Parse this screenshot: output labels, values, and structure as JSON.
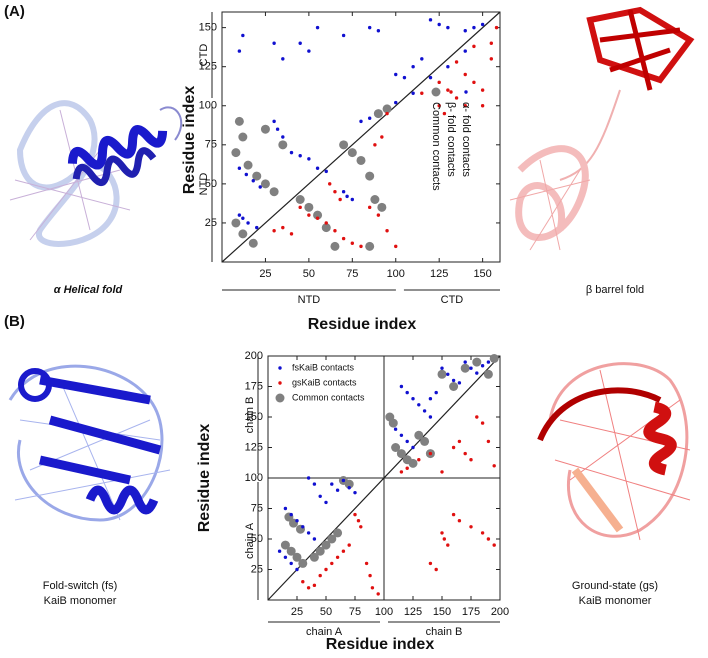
{
  "figure": {
    "panel_labels": [
      "(A)",
      "(B)"
    ],
    "captions": {
      "a_left": "α Helical fold",
      "a_right": "β barrel fold",
      "b_left": [
        "Fold-switch (fs)",
        "KaiB monomer"
      ],
      "b_right": [
        "Ground-state (gs)",
        "KaiB monomer"
      ]
    }
  },
  "chart_data": [
    {
      "type": "scatter",
      "x_label": "Residue index",
      "y_label": "Residue index",
      "xlim": [
        0,
        160
      ],
      "ylim": [
        0,
        160
      ],
      "xticks": [
        25,
        50,
        75,
        100,
        125,
        150
      ],
      "yticks": [
        25,
        50,
        75,
        100,
        125,
        150
      ],
      "x_domains": [
        "NTD",
        "CTD"
      ],
      "y_domains": [
        "NTD",
        "CTD"
      ],
      "legend": "rotated-inside",
      "series": [
        {
          "name": "α- fold contacts",
          "color": "#1010d0",
          "x": [
            10,
            12,
            15,
            20,
            30,
            32,
            35,
            10,
            14,
            18,
            22,
            40,
            45,
            50,
            55,
            60,
            70,
            72,
            75,
            80,
            85,
            30,
            35,
            45,
            50,
            55,
            70,
            85,
            90,
            100,
            105,
            110,
            115,
            120,
            125,
            130,
            140,
            145,
            150,
            12,
            10,
            100,
            110,
            120,
            130,
            140
          ],
          "values": [
            30,
            28,
            25,
            22,
            90,
            85,
            80,
            60,
            56,
            52,
            48,
            70,
            68,
            66,
            60,
            58,
            45,
            42,
            40,
            90,
            92,
            140,
            130,
            140,
            135,
            150,
            145,
            150,
            148,
            120,
            118,
            125,
            130,
            155,
            152,
            150,
            148,
            150,
            152,
            145,
            135,
            102,
            108,
            118,
            125,
            135
          ]
        },
        {
          "name": "β- fold contacts",
          "color": "#e01010",
          "x": [
            30,
            35,
            40,
            45,
            50,
            55,
            60,
            65,
            70,
            75,
            80,
            62,
            65,
            68,
            85,
            90,
            95,
            100,
            88,
            92,
            95,
            125,
            128,
            130,
            135,
            140,
            145,
            150,
            155,
            158,
            150,
            140,
            155,
            115,
            125,
            135,
            145
          ],
          "values": [
            20,
            22,
            18,
            35,
            30,
            28,
            25,
            20,
            15,
            12,
            10,
            50,
            45,
            40,
            35,
            30,
            20,
            10,
            75,
            80,
            95,
            100,
            95,
            110,
            105,
            120,
            115,
            110,
            140,
            150,
            100,
            100,
            130,
            108,
            115,
            128,
            138
          ]
        },
        {
          "name": "Common contacts",
          "color": "#808080",
          "x": [
            10,
            12,
            8,
            15,
            20,
            25,
            30,
            8,
            12,
            18,
            25,
            35,
            45,
            50,
            55,
            60,
            70,
            75,
            80,
            85,
            90,
            95,
            65,
            85,
            88,
            92
          ],
          "values": [
            90,
            80,
            70,
            62,
            55,
            50,
            45,
            25,
            18,
            12,
            85,
            75,
            40,
            35,
            30,
            22,
            75,
            70,
            65,
            55,
            95,
            98,
            10,
            10,
            40,
            35
          ]
        }
      ]
    },
    {
      "type": "scatter",
      "x_label": "Residue index",
      "y_label": "Residue index",
      "xlim": [
        0,
        200
      ],
      "ylim": [
        0,
        200
      ],
      "xticks": [
        25,
        50,
        75,
        100,
        125,
        150,
        175,
        200
      ],
      "yticks": [
        25,
        50,
        75,
        100,
        125,
        150,
        175,
        200
      ],
      "x_domains": [
        "chain A",
        "chain B"
      ],
      "y_domains": [
        "chain A",
        "chain B"
      ],
      "legend": "upper left",
      "series": [
        {
          "name": "fsKaiB contacts",
          "color": "#1010d0",
          "x": [
            10,
            15,
            20,
            25,
            15,
            20,
            25,
            30,
            35,
            40,
            45,
            50,
            55,
            60,
            65,
            70,
            75,
            35,
            40,
            110,
            115,
            120,
            125,
            115,
            120,
            125,
            130,
            135,
            140,
            150,
            155,
            160,
            165,
            170,
            175,
            180,
            185,
            190,
            145,
            140
          ],
          "values": [
            40,
            35,
            30,
            25,
            75,
            70,
            65,
            60,
            55,
            50,
            85,
            80,
            95,
            90,
            98,
            92,
            88,
            100,
            95,
            140,
            135,
            130,
            125,
            175,
            170,
            165,
            160,
            155,
            150,
            190,
            185,
            180,
            178,
            195,
            190,
            186,
            192,
            195,
            170,
            165
          ]
        },
        {
          "name": "gsKaiB contacts",
          "color": "#e01010",
          "x": [
            30,
            35,
            40,
            45,
            50,
            55,
            60,
            65,
            70,
            75,
            78,
            80,
            85,
            88,
            90,
            95,
            115,
            120,
            130,
            140,
            150,
            160,
            165,
            170,
            175,
            180,
            185,
            190,
            195,
            150,
            152,
            155,
            160,
            165,
            175,
            185,
            190,
            195,
            140,
            145
          ],
          "values": [
            15,
            10,
            12,
            20,
            25,
            30,
            35,
            40,
            45,
            70,
            65,
            60,
            30,
            20,
            10,
            5,
            105,
            108,
            115,
            120,
            105,
            125,
            130,
            120,
            115,
            150,
            145,
            130,
            110,
            55,
            50,
            45,
            70,
            65,
            60,
            55,
            50,
            45,
            30,
            25
          ]
        },
        {
          "name": "Common contacts",
          "color": "#808080",
          "x": [
            15,
            20,
            25,
            30,
            18,
            22,
            28,
            40,
            45,
            50,
            55,
            60,
            65,
            70,
            110,
            115,
            120,
            125,
            130,
            135,
            140,
            150,
            160,
            170,
            180,
            190,
            105,
            108,
            195
          ],
          "values": [
            45,
            40,
            35,
            30,
            68,
            63,
            58,
            35,
            40,
            45,
            50,
            55,
            98,
            95,
            125,
            120,
            115,
            112,
            135,
            130,
            120,
            185,
            175,
            190,
            195,
            185,
            150,
            145,
            198
          ]
        }
      ]
    }
  ]
}
